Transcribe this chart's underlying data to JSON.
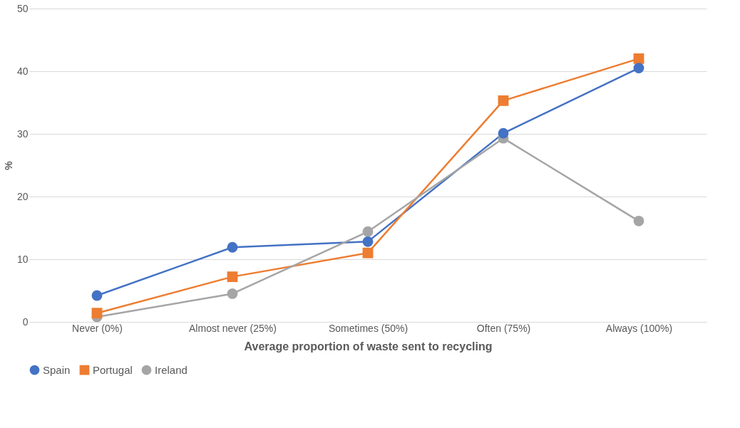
{
  "chart_data": {
    "type": "line",
    "xlabel": "Average proportion of waste sent to recycling",
    "ylabel": "%",
    "categories": [
      "Never (0%)",
      "Almost never (25%)",
      "Sometimes (50%)",
      "Often (75%)",
      "Always (100%)"
    ],
    "series": [
      {
        "name": "Spain",
        "color": "#4472c4",
        "marker": "circle",
        "values": [
          4.2,
          11.9,
          12.8,
          30.1,
          40.5
        ]
      },
      {
        "name": "Portugal",
        "color": "#ed7d31",
        "marker": "square",
        "values": [
          1.4,
          7.2,
          11.0,
          35.3,
          42.0
        ]
      },
      {
        "name": "Ireland",
        "color": "#a5a5a5",
        "marker": "circle",
        "values": [
          0.8,
          4.5,
          14.4,
          29.3,
          16.1
        ]
      }
    ],
    "ylim": [
      0,
      50
    ],
    "yticks": [
      0,
      10,
      20,
      30,
      40,
      50
    ],
    "grid": "y",
    "legend": "bottom",
    "line_style": "solid"
  }
}
